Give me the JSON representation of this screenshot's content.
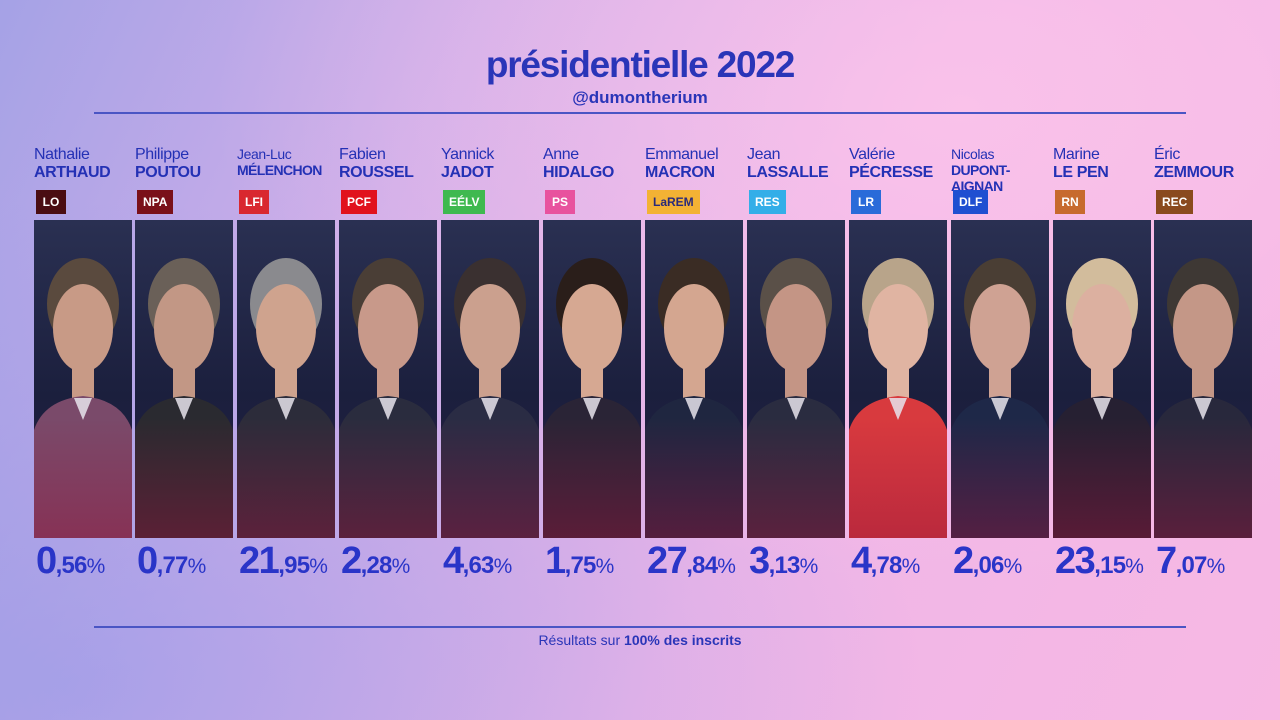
{
  "title": "présidentielle 2022",
  "handle": "@dumontherium",
  "footer": {
    "prefix": "Résultats sur ",
    "highlight": "100% des inscrits"
  },
  "candidates": [
    {
      "first": "Nathalie",
      "last": "ARTHAUD",
      "party": "LO",
      "party_color": "#4a0d12",
      "party_text_color": "#ffffff",
      "pct_int": "0",
      "pct_dec": ",56",
      "value": 0.56
    },
    {
      "first": "Philippe",
      "last": "POUTOU",
      "party": "NPA",
      "party_color": "#7a1019",
      "party_text_color": "#ffffff",
      "pct_int": "0",
      "pct_dec": ",77",
      "value": 0.77
    },
    {
      "first": "Jean-Luc",
      "last": "MÉLENCHON",
      "party": "LFI",
      "party_color": "#d9282f",
      "party_text_color": "#ffffff",
      "pct_int": "21",
      "pct_dec": ",95",
      "value": 21.95
    },
    {
      "first": "Fabien",
      "last": "ROUSSEL",
      "party": "PCF",
      "party_color": "#e1121d",
      "party_text_color": "#ffffff",
      "pct_int": "2",
      "pct_dec": ",28",
      "value": 2.28
    },
    {
      "first": "Yannick",
      "last": "JADOT",
      "party": "EÉLV",
      "party_color": "#3fb94f",
      "party_text_color": "#ffffff",
      "pct_int": "4",
      "pct_dec": ",63",
      "value": 4.63
    },
    {
      "first": "Anne",
      "last": "HIDALGO",
      "party": "PS",
      "party_color": "#e8529e",
      "party_text_color": "#ffffff",
      "pct_int": "1",
      "pct_dec": ",75",
      "value": 1.75
    },
    {
      "first": "Emmanuel",
      "last": "MACRON",
      "party": "LaREM",
      "party_color": "#f3b234",
      "party_text_color": "#2a2a7a",
      "pct_int": "27",
      "pct_dec": ",84",
      "value": 27.84
    },
    {
      "first": "Jean",
      "last": "LASSALLE",
      "party": "RES",
      "party_color": "#33aee8",
      "party_text_color": "#ffffff",
      "pct_int": "3",
      "pct_dec": ",13",
      "value": 3.13
    },
    {
      "first": "Valérie",
      "last": "PÉCRESSE",
      "party": "LR",
      "party_color": "#2a6bd9",
      "party_text_color": "#ffffff",
      "pct_int": "4",
      "pct_dec": ",78",
      "value": 4.78
    },
    {
      "first": "Nicolas",
      "last": "DUPONT-\nAIGNAN",
      "party": "DLF",
      "party_color": "#1f4fd1",
      "party_text_color": "#ffffff",
      "pct_int": "2",
      "pct_dec": ",06",
      "value": 2.06
    },
    {
      "first": "Marine",
      "last": "LE PEN",
      "party": "RN",
      "party_color": "#c76a2e",
      "party_text_color": "#ffffff",
      "pct_int": "23",
      "pct_dec": ",15",
      "value": 23.15
    },
    {
      "first": "Éric",
      "last": "ZEMMOUR",
      "party": "REC",
      "party_color": "#8a4a1e",
      "party_text_color": "#ffffff",
      "pct_int": "7",
      "pct_dec": ",07",
      "value": 7.07
    }
  ],
  "pct_sign": "%"
}
